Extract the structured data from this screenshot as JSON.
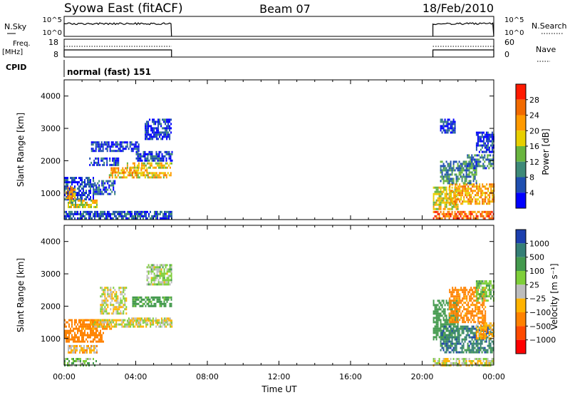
{
  "header": {
    "station": "Syowa East (fitACF)",
    "beam": "Beam 07",
    "date": "18/Feb/2010"
  },
  "top_panels": {
    "nsky_label": "N.Sky",
    "nsky_ticks": [
      "10^5",
      "10^0"
    ],
    "nsearch_label": "N.Search",
    "nsearch_ticks": [
      "10^5",
      "10^0"
    ],
    "freq_label": "Freq.",
    "freq_unit": "[MHz]",
    "freq_ticks": [
      "18",
      "8"
    ],
    "nave_label": "Nave",
    "nave_ticks": [
      "60",
      "0"
    ],
    "cpid_label": "CPID",
    "cpid_text": "normal (fast) 151",
    "data_intervals_hours": [
      [
        0.0,
        6.0
      ],
      [
        20.6,
        24.0
      ]
    ]
  },
  "chart_data": [
    {
      "type": "heatmap",
      "quantity": "Power",
      "xlabel": "Time UT",
      "ylabel": "Slant Range [km]",
      "xlim_hours": [
        0,
        24
      ],
      "ylim_km": [
        180,
        4500
      ],
      "x_ticks": [
        "00:00",
        "04:00",
        "08:00",
        "12:00",
        "16:00",
        "20:00",
        "00:00"
      ],
      "y_ticks": [
        1000,
        2000,
        3000,
        4000
      ],
      "colorbar": {
        "label": "Power [dB]",
        "ticks": [
          "4",
          "8",
          "12",
          "16",
          "20",
          "24",
          "28"
        ],
        "colors": [
          "#0000ff",
          "#1f4fb0",
          "#3e8a78",
          "#69b53f",
          "#e8cf00",
          "#ff9a00",
          "#f26a00",
          "#ff1a00"
        ]
      },
      "regions": [
        {
          "t": [
            0.0,
            1.6
          ],
          "r": [
            800,
            1500
          ],
          "v": 5
        },
        {
          "t": [
            0.1,
            0.6
          ],
          "r": [
            850,
            1200
          ],
          "v": 22
        },
        {
          "t": [
            0.2,
            1.8
          ],
          "r": [
            600,
            800
          ],
          "v": 17
        },
        {
          "t": [
            1.6,
            2.8
          ],
          "r": [
            1000,
            1400
          ],
          "v": 6
        },
        {
          "t": [
            1.4,
            3.0
          ],
          "r": [
            1900,
            2100
          ],
          "v": 5
        },
        {
          "t": [
            1.5,
            4.2
          ],
          "r": [
            2300,
            2600
          ],
          "v": 4
        },
        {
          "t": [
            2.5,
            6.0
          ],
          "r": [
            1500,
            1650
          ],
          "v": 20
        },
        {
          "t": [
            2.6,
            4.6
          ],
          "r": [
            1650,
            1800
          ],
          "v": 22
        },
        {
          "t": [
            3.5,
            6.0
          ],
          "r": [
            1800,
            1950
          ],
          "v": 18
        },
        {
          "t": [
            4.0,
            6.0
          ],
          "r": [
            2000,
            2300
          ],
          "v": 5
        },
        {
          "t": [
            4.5,
            6.0
          ],
          "r": [
            2700,
            3300
          ],
          "v": 4
        },
        {
          "t": [
            0.0,
            6.0
          ],
          "r": [
            200,
            450
          ],
          "v": 6
        },
        {
          "t": [
            20.6,
            22.0
          ],
          "r": [
            500,
            1200
          ],
          "v": 18
        },
        {
          "t": [
            21.5,
            24.0
          ],
          "r": [
            700,
            1300
          ],
          "v": 22
        },
        {
          "t": [
            21.0,
            23.0
          ],
          "r": [
            1300,
            2000
          ],
          "v": 10
        },
        {
          "t": [
            22.5,
            24.0
          ],
          "r": [
            1800,
            2200
          ],
          "v": 9
        },
        {
          "t": [
            23.0,
            24.0
          ],
          "r": [
            2300,
            2900
          ],
          "v": 4
        },
        {
          "t": [
            20.6,
            24.0
          ],
          "r": [
            200,
            450
          ],
          "v": 26
        },
        {
          "t": [
            21.0,
            21.8
          ],
          "r": [
            2900,
            3300
          ],
          "v": 5
        }
      ]
    },
    {
      "type": "heatmap",
      "quantity": "Velocity",
      "xlabel": "Time UT",
      "ylabel": "Slant Range [km]",
      "xlim_hours": [
        0,
        24
      ],
      "ylim_km": [
        180,
        4500
      ],
      "x_ticks": [
        "00:00",
        "04:00",
        "08:00",
        "12:00",
        "16:00",
        "20:00",
        "00:00"
      ],
      "y_ticks": [
        1000,
        2000,
        3000,
        4000
      ],
      "colorbar": {
        "label": "Velocity [m s⁻¹]",
        "ticks": [
          "1000",
          "500",
          "100",
          "25",
          "−25",
          "−100",
          "−500",
          "−1000"
        ],
        "colors": [
          "#1c3fae",
          "#357f76",
          "#449a4e",
          "#7fcf3a",
          "#bdbdbd",
          "#ffb300",
          "#ff8200",
          "#ff4a00",
          "#ff0000"
        ]
      },
      "regions": [
        {
          "t": [
            0.0,
            2.2
          ],
          "r": [
            900,
            1600
          ],
          "v": -300
        },
        {
          "t": [
            1.0,
            2.6
          ],
          "r": [
            1300,
            1600
          ],
          "v": -120
        },
        {
          "t": [
            0.2,
            1.8
          ],
          "r": [
            600,
            800
          ],
          "v": -60
        },
        {
          "t": [
            0.0,
            1.8
          ],
          "r": [
            200,
            400
          ],
          "v": 60
        },
        {
          "t": [
            1.6,
            6.0
          ],
          "r": [
            1400,
            1600
          ],
          "v": 0
        },
        {
          "t": [
            2.0,
            3.5
          ],
          "r": [
            1800,
            2600
          ],
          "v": 0
        },
        {
          "t": [
            3.5,
            6.0
          ],
          "r": [
            1500,
            1650
          ],
          "v": 0
        },
        {
          "t": [
            3.8,
            6.0
          ],
          "r": [
            2000,
            2300
          ],
          "v": 200
        },
        {
          "t": [
            4.6,
            6.0
          ],
          "r": [
            2700,
            3300
          ],
          "v": 40
        },
        {
          "t": [
            20.6,
            22.0
          ],
          "r": [
            1000,
            2200
          ],
          "v": 300
        },
        {
          "t": [
            21.5,
            23.5
          ],
          "r": [
            1500,
            2600
          ],
          "v": -200
        },
        {
          "t": [
            21.0,
            24.0
          ],
          "r": [
            600,
            1400
          ],
          "v": 700
        },
        {
          "t": [
            23.0,
            24.0
          ],
          "r": [
            1000,
            1500
          ],
          "v": -80
        },
        {
          "t": [
            23.0,
            24.0
          ],
          "r": [
            2200,
            2800
          ],
          "v": 80
        },
        {
          "t": [
            20.6,
            24.0
          ],
          "r": [
            200,
            400
          ],
          "v": 0
        }
      ]
    }
  ]
}
